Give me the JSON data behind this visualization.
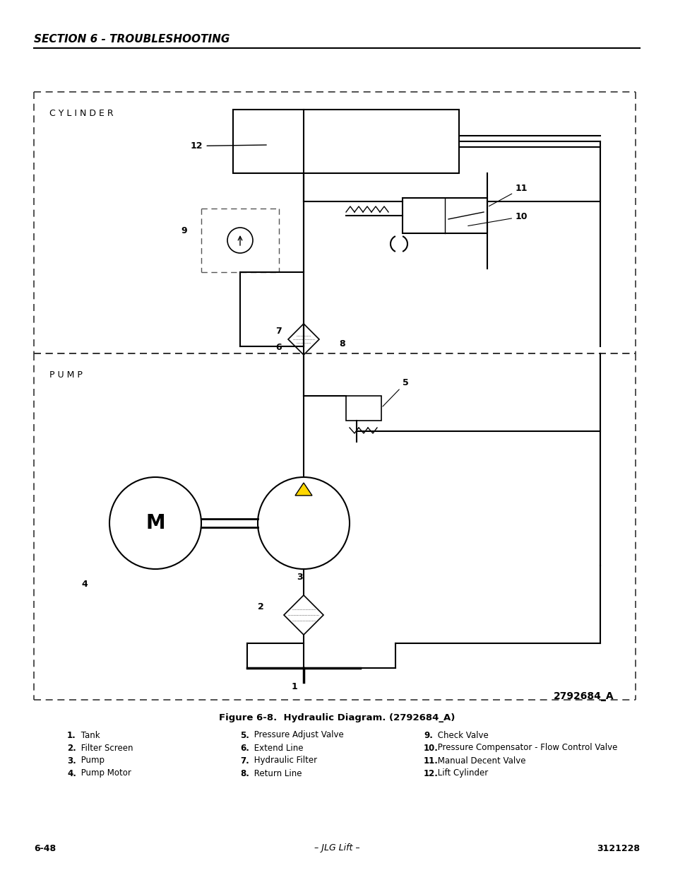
{
  "title_section": "SECTION 6 - TROUBLESHOOTING",
  "figure_caption": "Figure 6-8.  Hydraulic Diagram. (2792684_A)",
  "diagram_id": "2792684_A",
  "page_left": "6-48",
  "page_center": "– JLG Lift –",
  "page_right": "3121228",
  "legend_items": [
    [
      "1. Tank",
      "5. Pressure Adjust Valve",
      "9. Check Valve"
    ],
    [
      "2. Filter Screen",
      "6. Extend Line",
      "10. Pressure Compensator - Flow Control Valve"
    ],
    [
      "3. Pump",
      "7. Hydraulic Filter",
      "11. Manual Decent Valve"
    ],
    [
      "4. Pump Motor",
      "8. Return Line",
      "12. Lift Cylinder"
    ]
  ],
  "bg_color": "#ffffff",
  "line_color": "#000000",
  "dashed_line_color": "#555555"
}
